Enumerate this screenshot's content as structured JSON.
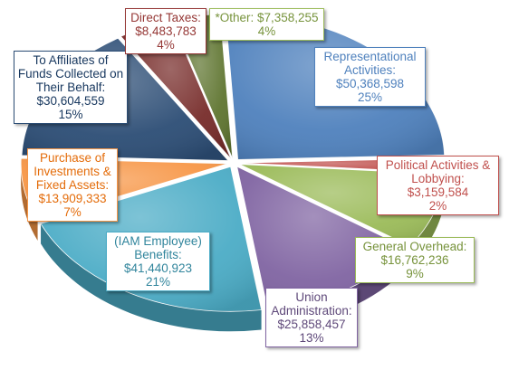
{
  "chart_data": {
    "type": "pie",
    "style": "3d-exploded",
    "total_label": "",
    "slices": [
      {
        "key": "representational",
        "label_lines": [
          "Representational",
          "Activities:"
        ],
        "amount": "$50,368,598",
        "value": 50368598,
        "percent": "25%",
        "color": "#4f81bd",
        "text_color": "#4f81bd"
      },
      {
        "key": "political",
        "label_lines": [
          "Political Activities &",
          "Lobbying:"
        ],
        "amount": "$3,159,584",
        "value": 3159584,
        "percent": "2%",
        "color": "#c0504d",
        "text_color": "#c0504d"
      },
      {
        "key": "overhead",
        "label_lines": [
          "General Overhead:"
        ],
        "amount": "$16,762,236",
        "value": 16762236,
        "percent": "9%",
        "color": "#9bbb59",
        "text_color": "#77933c"
      },
      {
        "key": "union_admin",
        "label_lines": [
          "Union",
          "Administration:"
        ],
        "amount": "$25,858,457",
        "value": 25858457,
        "percent": "13%",
        "color": "#8064a2",
        "text_color": "#5f497a"
      },
      {
        "key": "employee_benefits",
        "label_lines": [
          "(IAM Employee)",
          "Benefits:"
        ],
        "amount": "$41,440,923",
        "value": 41440923,
        "percent": "21%",
        "color": "#4bacc6",
        "text_color": "#31859c"
      },
      {
        "key": "investments",
        "label_lines": [
          "Purchase of",
          "Investments &",
          "Fixed Assets:"
        ],
        "amount": "$13,909,333",
        "value": 13909333,
        "percent": "7%",
        "color": "#f79646",
        "text_color": "#e46c0a"
      },
      {
        "key": "affiliates",
        "label_lines": [
          "To Affiliates of",
          "Funds Collected on",
          "Their Behalf:"
        ],
        "amount": "$30,604,559",
        "value": 30604559,
        "percent": "15%",
        "color": "#2c4d75",
        "text_color": "#17375e"
      },
      {
        "key": "direct_taxes",
        "label_lines": [
          "Direct Taxes:"
        ],
        "amount": "$8,483,783",
        "value": 8483783,
        "percent": "4%",
        "color": "#772c2a",
        "text_color": "#953735"
      },
      {
        "key": "other",
        "label_lines": [
          "*Other: $7,358,255"
        ],
        "amount": "",
        "value": 7358255,
        "percent": "4%",
        "color": "#5f7530",
        "text_color": "#77933c"
      }
    ]
  }
}
